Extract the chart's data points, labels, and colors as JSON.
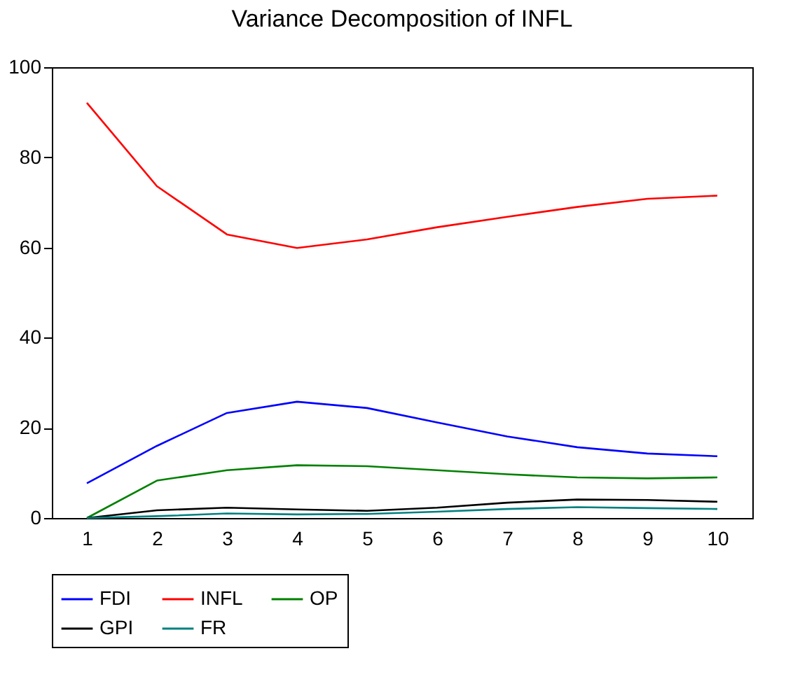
{
  "chart_data": {
    "type": "line",
    "title": "Variance Decomposition of INFL",
    "categories": [
      "1",
      "2",
      "3",
      "4",
      "5",
      "6",
      "7",
      "8",
      "9",
      "10"
    ],
    "ylim": [
      0,
      100
    ],
    "yticks": [
      0,
      20,
      40,
      60,
      80,
      100
    ],
    "grid": false,
    "legend": "bottom",
    "marker": "none",
    "line_style": "solid",
    "series": [
      {
        "name": "FDI",
        "color": "#0000ff",
        "values": [
          7.7,
          16.0,
          23.3,
          25.8,
          24.4,
          21.2,
          18.1,
          15.7,
          14.3,
          13.7
        ]
      },
      {
        "name": "INFL",
        "color": "#ff0000",
        "values": [
          92.1,
          73.6,
          62.9,
          59.9,
          61.8,
          64.5,
          66.8,
          69.0,
          70.8,
          71.5
        ]
      },
      {
        "name": "OP",
        "color": "#008000",
        "values": [
          0,
          8.3,
          10.6,
          11.7,
          11.5,
          10.6,
          9.7,
          9.0,
          8.8,
          9.0
        ]
      },
      {
        "name": "GPI",
        "color": "#000000",
        "values": [
          0,
          1.7,
          2.3,
          1.9,
          1.6,
          2.3,
          3.4,
          4.1,
          4.0,
          3.6
        ]
      },
      {
        "name": "FR",
        "color": "#008080",
        "values": [
          0,
          0.4,
          1.0,
          0.8,
          0.9,
          1.4,
          2.0,
          2.4,
          2.2,
          2.0
        ]
      }
    ]
  }
}
